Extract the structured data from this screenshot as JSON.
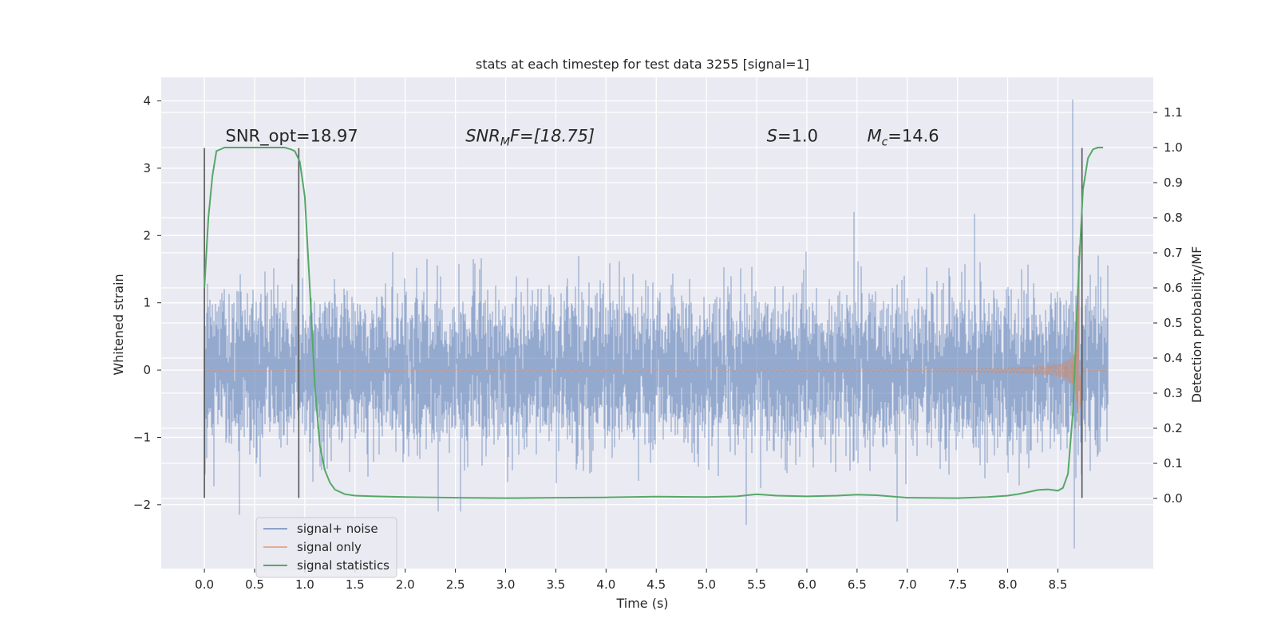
{
  "chart_data": {
    "type": "line",
    "title": "stats at each timestep for test data 3255 [signal=1]",
    "xlabel": "Time (s)",
    "ylabel": "Whitened strain",
    "y2label": "Detection probability/MF",
    "xlim": [
      -0.43,
      9.45
    ],
    "ylim": [
      -2.95,
      4.35
    ],
    "y2lim": [
      -0.2,
      1.2
    ],
    "xticks": [
      0.0,
      0.5,
      1.0,
      1.5,
      2.0,
      2.5,
      3.0,
      3.5,
      4.0,
      4.5,
      5.0,
      5.5,
      6.0,
      6.5,
      7.0,
      7.5,
      8.0,
      8.5
    ],
    "xtick_labels": [
      "0.0",
      "0.5",
      "1.0",
      "1.5",
      "2.0",
      "2.5",
      "3.0",
      "3.5",
      "4.0",
      "4.5",
      "5.0",
      "5.5",
      "6.0",
      "6.5",
      "7.0",
      "7.5",
      "8.0",
      "8.5"
    ],
    "yticks": [
      -2,
      -1,
      0,
      1,
      2,
      3,
      4
    ],
    "ytick_labels": [
      "−2",
      "−1",
      "0",
      "1",
      "2",
      "3",
      "4"
    ],
    "y2ticks": [
      0.0,
      0.1,
      0.2,
      0.3,
      0.4,
      0.5,
      0.6,
      0.7,
      0.8,
      0.9,
      1.0,
      1.1
    ],
    "y2tick_labels": [
      "0.0",
      "0.1",
      "0.2",
      "0.3",
      "0.4",
      "0.5",
      "0.6",
      "0.7",
      "0.8",
      "0.9",
      "1.0",
      "1.1"
    ],
    "grid": true,
    "legend_location": "lower-left",
    "colors": {
      "noise": "#4c72b0",
      "signal": "#dd8452",
      "stats": "#55a868",
      "markers": "#555555",
      "background": "#eaeaf2"
    },
    "annotations": [
      {
        "x": 0.21,
        "y": 3.35,
        "text": "SNR_opt=18.97"
      },
      {
        "x": 2.6,
        "y": 3.35,
        "text": "SNR_MF=[18.75]"
      },
      {
        "x": 5.6,
        "y": 3.35,
        "text": "S=1.0"
      },
      {
        "x": 6.6,
        "y": 3.35,
        "text": "M_c=14.6"
      }
    ],
    "annotation_parts": {
      "snr_opt": "SNR_opt=18.97",
      "snr_mf_main": "SNR",
      "snr_mf_sub": "M",
      "snr_mf_rest": "F=[18.75]",
      "s_var": "S",
      "s_rest": "=1.0",
      "mc_var": "M",
      "mc_sub": "c",
      "mc_rest": "=14.6"
    },
    "vertical_markers": [
      {
        "x": 0.0,
        "y": [
          -1.9,
          3.3
        ]
      },
      {
        "x": 0.94,
        "y": [
          -1.9,
          3.3
        ]
      },
      {
        "x": 8.74,
        "y": [
          -1.9,
          3.3
        ]
      }
    ],
    "series": [
      {
        "name": "signal+ noise",
        "axis": "left",
        "kind": "noise",
        "t_range": [
          0.0,
          9.0
        ],
        "typical_peak_range": [
          -1.45,
          1.55
        ],
        "extremes": [
          {
            "x": 0.35,
            "y": -2.15
          },
          {
            "x": 2.33,
            "y": -2.1
          },
          {
            "x": 2.55,
            "y": -2.1
          },
          {
            "x": 5.4,
            "y": -2.3
          },
          {
            "x": 6.47,
            "y": 2.35
          },
          {
            "x": 6.9,
            "y": -2.25
          },
          {
            "x": 7.67,
            "y": 2.32
          },
          {
            "x": 8.65,
            "y": 4.02
          },
          {
            "x": 8.66,
            "y": -2.65
          }
        ]
      },
      {
        "name": "signal only",
        "axis": "left",
        "kind": "chirp",
        "t_range": [
          0.0,
          9.0
        ],
        "merger_time": 8.71,
        "peak_amplitude": 2.0
      },
      {
        "name": "signal statistics",
        "axis": "right",
        "kind": "line",
        "x": [
          0.0,
          0.04,
          0.08,
          0.12,
          0.2,
          0.3,
          0.5,
          0.7,
          0.8,
          0.86,
          0.9,
          0.95,
          1.0,
          1.05,
          1.1,
          1.15,
          1.2,
          1.25,
          1.3,
          1.4,
          1.5,
          1.7,
          2.0,
          2.5,
          3.0,
          3.5,
          4.0,
          4.5,
          5.0,
          5.3,
          5.5,
          5.7,
          6.0,
          6.3,
          6.5,
          6.7,
          7.0,
          7.5,
          7.8,
          8.0,
          8.1,
          8.2,
          8.3,
          8.4,
          8.5,
          8.55,
          8.6,
          8.65,
          8.7,
          8.75,
          8.8,
          8.85,
          8.9,
          8.95
        ],
        "y": [
          0.6,
          0.8,
          0.92,
          0.99,
          1.0,
          1.0,
          1.0,
          1.0,
          1.0,
          0.995,
          0.99,
          0.96,
          0.86,
          0.6,
          0.32,
          0.15,
          0.08,
          0.045,
          0.025,
          0.012,
          0.008,
          0.006,
          0.004,
          0.002,
          0.001,
          0.002,
          0.003,
          0.005,
          0.004,
          0.006,
          0.012,
          0.008,
          0.006,
          0.008,
          0.011,
          0.009,
          0.002,
          0.001,
          0.004,
          0.008,
          0.012,
          0.018,
          0.024,
          0.026,
          0.022,
          0.03,
          0.07,
          0.25,
          0.6,
          0.88,
          0.97,
          0.995,
          1.0,
          1.0
        ]
      }
    ]
  }
}
